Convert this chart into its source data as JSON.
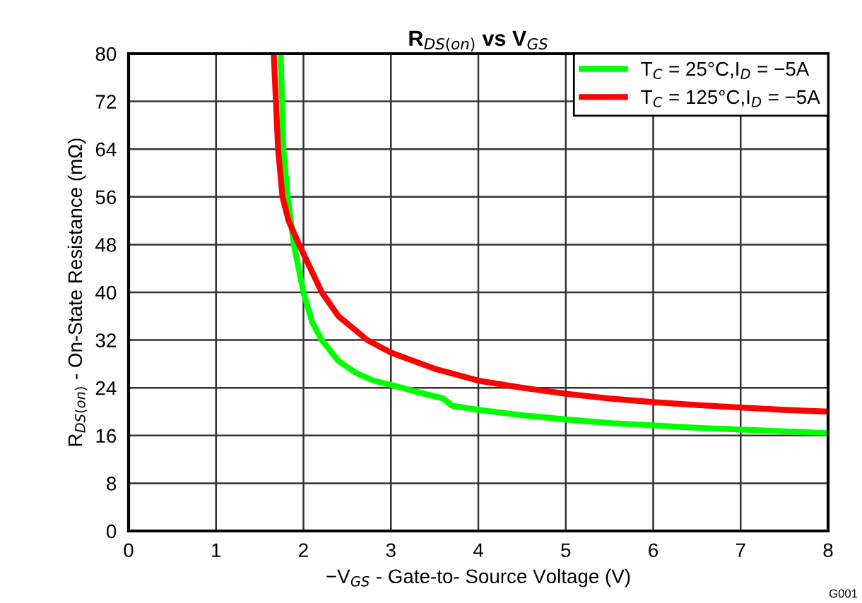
{
  "chart_data": {
    "type": "line",
    "title": "R$_{DS(on)}$ vs V$_{GS}$",
    "xlabel": "−V$_{GS}$ - Gate-to- Source Voltage (V)",
    "ylabel": "R$_{DS(on)}$ - On-State Resistance (mΩ)",
    "series": [
      {
        "name": "T$_{C}$ = 25°C,I$_{D}$ = −5A",
        "color": "#00ff00",
        "x": [
          1.74,
          1.77,
          1.82,
          1.89,
          2.0,
          2.1,
          2.21,
          2.4,
          2.6,
          2.8,
          3.0,
          3.3,
          3.6,
          3.7,
          4,
          4.5,
          5,
          5.5,
          6,
          6.5,
          7,
          7.5,
          8
        ],
        "values": [
          80,
          64,
          56,
          48,
          40,
          35,
          32,
          28.5,
          26.5,
          25.2,
          24.5,
          23.3,
          22.2,
          21.0,
          20.3,
          19.4,
          18.7,
          18.1,
          17.7,
          17.3,
          17.0,
          16.7,
          16.4
        ]
      },
      {
        "name": "T$_{C}$ = 125°C,I$_{D}$ = −5A",
        "color": "#ff0000",
        "x": [
          1.66,
          1.71,
          1.76,
          1.83,
          1.95,
          2.21,
          2.4,
          2.73,
          3,
          3.5,
          4,
          4.5,
          5,
          5.5,
          6,
          6.5,
          7,
          7.5,
          8
        ],
        "values": [
          80,
          64,
          56,
          52,
          48,
          40,
          36,
          32,
          29.9,
          27.2,
          25.2,
          24.0,
          23.0,
          22.2,
          21.6,
          21.1,
          20.7,
          20.3,
          20.0
        ]
      }
    ],
    "xlim": [
      0,
      8
    ],
    "xticks": [
      0,
      1,
      2,
      3,
      4,
      5,
      6,
      7,
      8
    ],
    "ylim": [
      0,
      80
    ],
    "yticks": [
      0,
      8,
      16,
      24,
      32,
      40,
      48,
      56,
      64,
      72,
      80
    ],
    "grid": true,
    "legend": "top right",
    "annotations": [
      "G001"
    ]
  }
}
